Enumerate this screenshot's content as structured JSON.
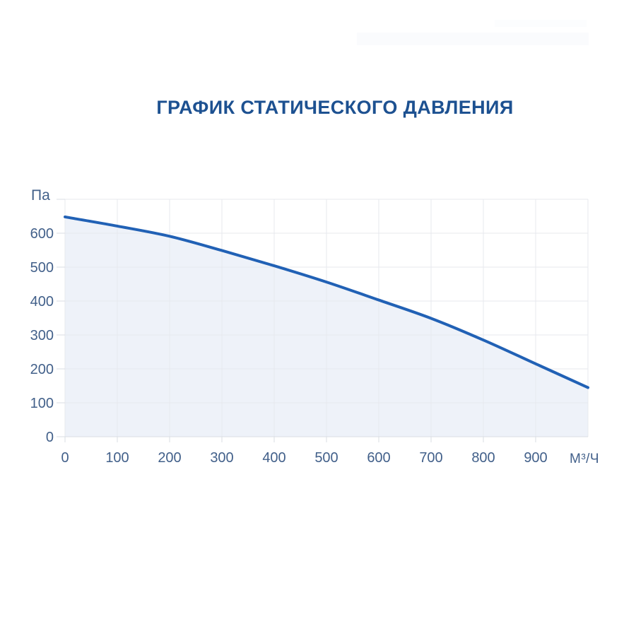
{
  "title": {
    "text": "ГРАФИК СТАТИЧЕСКОГО ДАВЛЕНИЯ"
  },
  "colors": {
    "background": "#ffffff",
    "title": "#1d5191",
    "tick_text": "#42608a",
    "curve": "#2161b5",
    "area_fill": "#eef2f9",
    "gridline": "#e7e9ee",
    "axis_line": "#d9dde3"
  },
  "chart_data": {
    "type": "area",
    "title": "ГРАФИК СТАТИЧЕСКОГО ДАВЛЕНИЯ",
    "x": [
      0,
      100,
      200,
      300,
      400,
      500,
      600,
      700,
      800,
      900,
      1000
    ],
    "values": [
      648,
      621,
      591,
      549,
      504,
      456,
      403,
      349,
      285,
      215,
      145
    ],
    "xlabel": "М³/Ч",
    "ylabel": "Па",
    "xlim": [
      0,
      1000
    ],
    "ylim": [
      0,
      700
    ],
    "x_ticks": [
      0,
      100,
      200,
      300,
      400,
      500,
      600,
      700,
      800,
      900
    ],
    "y_ticks": [
      0,
      100,
      200,
      300,
      400,
      500,
      600
    ],
    "grid": true,
    "legend": false,
    "line_width": 4
  }
}
